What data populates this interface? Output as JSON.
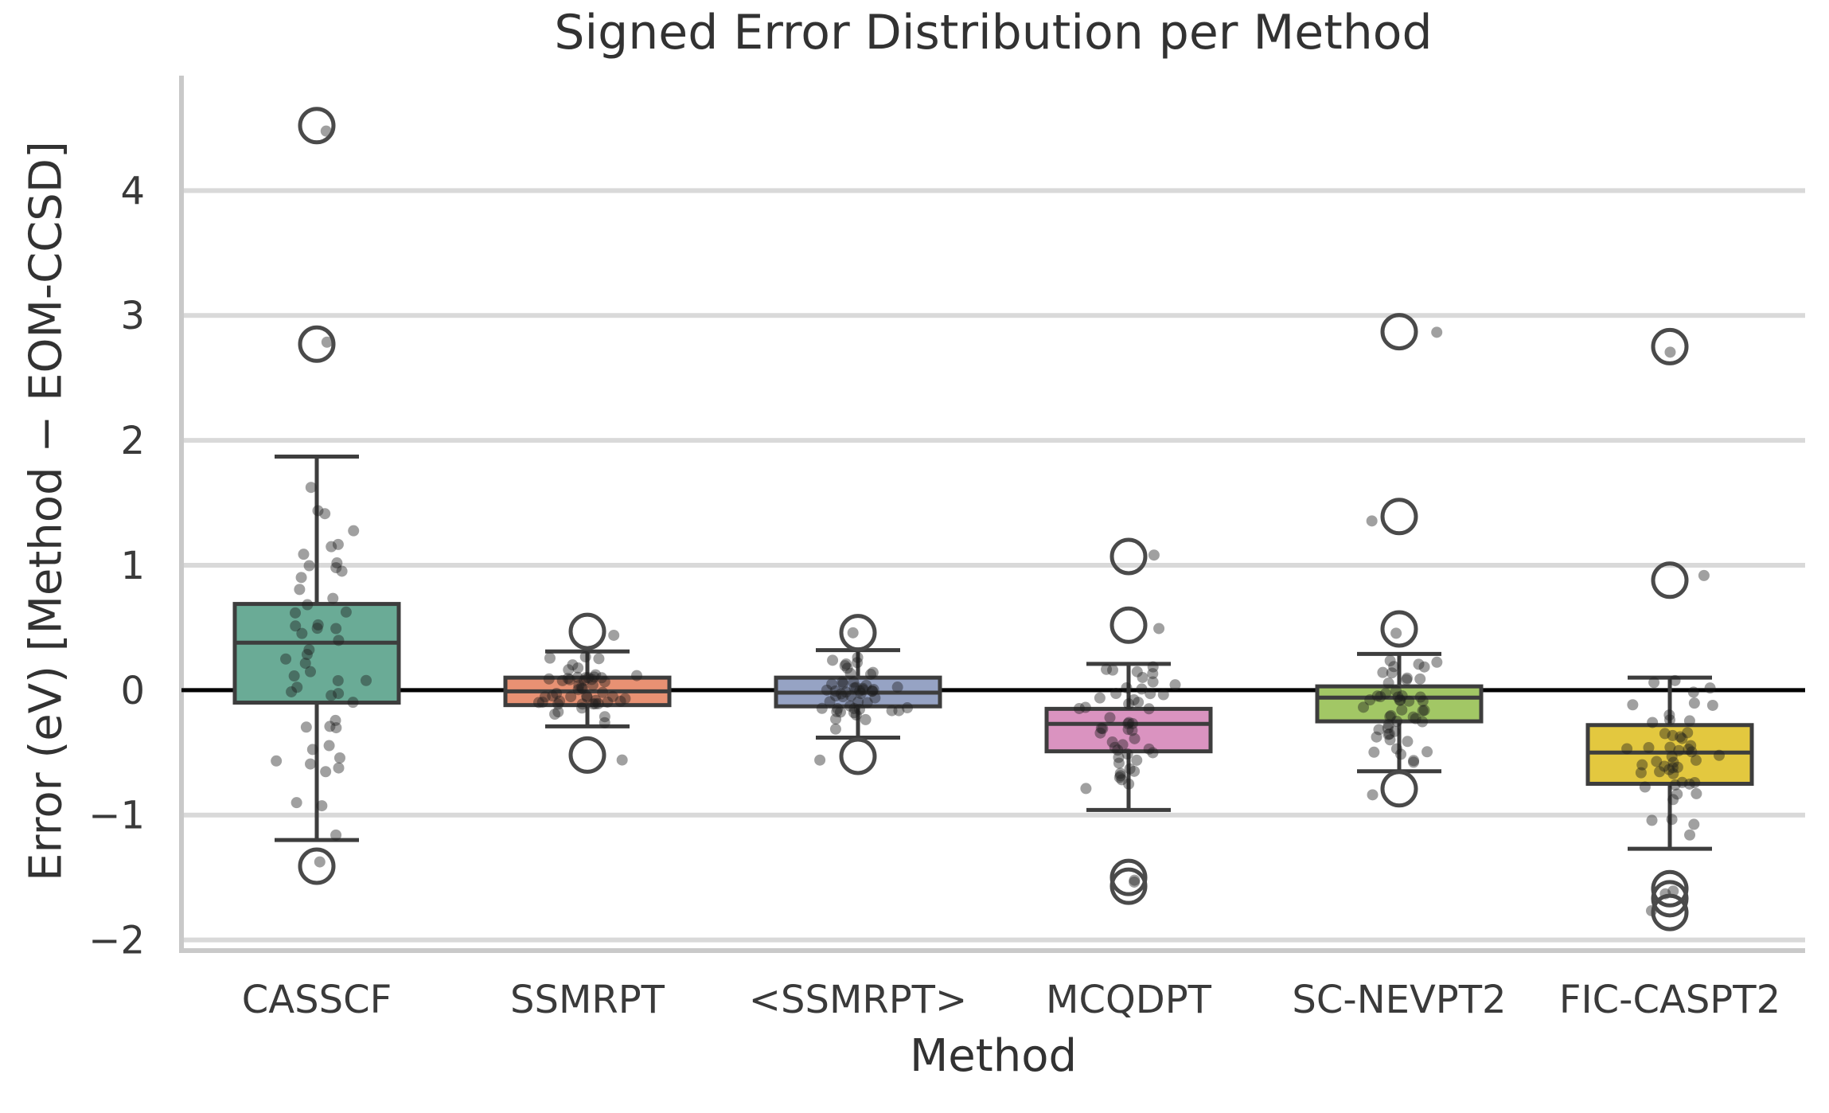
{
  "chart_data": {
    "type": "box",
    "title": "Signed Error Distribution per Method",
    "xlabel": "Method",
    "ylabel": "Error (eV) [Method − EOM-CCSD]",
    "ylim": [
      -2.06,
      4.92
    ],
    "yticks": [
      {
        "value": 4,
        "label": "4"
      },
      {
        "value": 3,
        "label": "3"
      },
      {
        "value": 2,
        "label": "2"
      },
      {
        "value": 1,
        "label": "1"
      },
      {
        "value": 0,
        "label": "0"
      },
      {
        "value": -1,
        "label": "−1"
      },
      {
        "value": -2,
        "label": "−2"
      }
    ],
    "grid": "horizontal",
    "legend": "none",
    "zero_line": {
      "value": 0,
      "color": "#000000"
    },
    "categories": [
      "CASSCF",
      "SSMRPT",
      "<SSMRPT>",
      "MCQDPT",
      "SC-NEVPT2",
      "FIC-CASPT2"
    ],
    "series": [
      {
        "method": "CASSCF",
        "color": "#6aab96",
        "q1": -0.1,
        "median": 0.38,
        "q3": 0.69,
        "whisker_low": -1.2,
        "whisker_high": 1.87,
        "outliers": [
          4.52,
          2.77,
          -1.41
        ],
        "strip": {
          "count": 50,
          "mean": 0.32,
          "sd": 0.72,
          "seed": 101
        }
      },
      {
        "method": "SSMRPT",
        "color": "#e89173",
        "q1": -0.12,
        "median": -0.01,
        "q3": 0.1,
        "whisker_low": -0.29,
        "whisker_high": 0.31,
        "outliers": [
          0.47,
          -0.52
        ],
        "strip": {
          "count": 50,
          "mean": 0.0,
          "sd": 0.13,
          "seed": 202
        }
      },
      {
        "method": "<SSMRPT>",
        "color": "#96a3c4",
        "q1": -0.13,
        "median": -0.02,
        "q3": 0.1,
        "whisker_low": -0.38,
        "whisker_high": 0.32,
        "outliers": [
          0.46,
          -0.53
        ],
        "strip": {
          "count": 50,
          "mean": -0.02,
          "sd": 0.16,
          "seed": 303
        }
      },
      {
        "method": "MCQDPT",
        "color": "#da93c0",
        "q1": -0.49,
        "median": -0.27,
        "q3": -0.15,
        "whisker_low": -0.96,
        "whisker_high": 0.21,
        "outliers": [
          1.07,
          0.52,
          -1.5,
          -1.57
        ],
        "strip": {
          "count": 48,
          "mean": -0.28,
          "sd": 0.3,
          "seed": 404
        }
      },
      {
        "method": "SC-NEVPT2",
        "color": "#a2c765",
        "q1": -0.25,
        "median": -0.06,
        "q3": 0.03,
        "whisker_low": -0.65,
        "whisker_high": 0.29,
        "outliers": [
          2.87,
          1.39,
          0.49,
          -0.79
        ],
        "strip": {
          "count": 48,
          "mean": -0.1,
          "sd": 0.26,
          "seed": 505
        }
      },
      {
        "method": "FIC-CASPT2",
        "color": "#e3c83f",
        "q1": -0.75,
        "median": -0.5,
        "q3": -0.28,
        "whisker_low": -1.27,
        "whisker_high": 0.1,
        "outliers": [
          2.75,
          0.88,
          -1.59,
          -1.67,
          -1.78
        ],
        "strip": {
          "count": 48,
          "mean": -0.45,
          "sd": 0.34,
          "seed": 606
        }
      }
    ],
    "style": {
      "grid_color": "#d9d9d9",
      "spine_color": "#c9c9c9",
      "box_edge_color": "#3d3d3d",
      "outlier_edge_color": "#4a4a4a",
      "strip_dot_color": "#1c1c1c",
      "tick_label_color": "#3a3a3a",
      "background": "#ffffff"
    }
  }
}
